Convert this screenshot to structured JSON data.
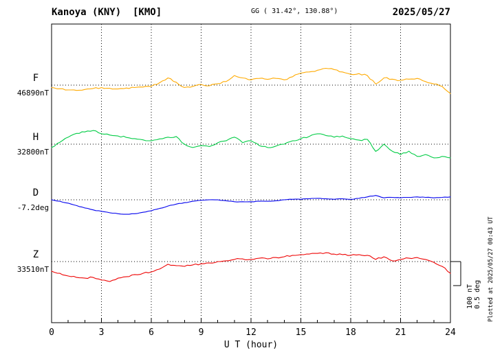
{
  "header": {
    "station_title": "Kanoya (KNY)  [KMO]",
    "gg_coords": "GG ( 31.42°, 130.88°)",
    "date": "2025/05/27"
  },
  "x_axis": {
    "label": "U T (hour)",
    "ticks": [
      0,
      3,
      6,
      9,
      12,
      15,
      18,
      21,
      24
    ],
    "min": 0,
    "max": 24
  },
  "scale_bar": {
    "line1": "100 nT",
    "line2": "0.5 deg"
  },
  "plotted_at": "Plotted at 2025/05/27 00:43 UT",
  "chart_data": {
    "type": "line",
    "title": "Kanoya (KNY) [KMO] geomagnetic field variations, 2025/05/27",
    "xlabel": "U T (hour)",
    "x_start": 0,
    "x_step": 0.5,
    "x_end": 24,
    "x_ticks": [
      0,
      3,
      6,
      9,
      12,
      15,
      18,
      21,
      24
    ],
    "grid": {
      "vertical_dotted_every_hours": 3,
      "horizontal_dotted_baselines": true
    },
    "scale": {
      "nT_per_div": 100,
      "deg_per_div": 0.5
    },
    "legend_position": "left",
    "sampling_note": "offsets are deviations from baseline_value in series unit, every 0.5 hour UT, estimated from plot",
    "series": [
      {
        "name": "F",
        "unit": "nT",
        "color": "#ffaa00",
        "baseline_value": 46890,
        "baseline_label": "46890nT",
        "offsets": [
          -10,
          -15,
          -20,
          -22,
          -18,
          -14,
          -10,
          -13,
          -16,
          -12,
          -10,
          -8,
          -5,
          10,
          30,
          12,
          -10,
          -5,
          3,
          -3,
          6,
          15,
          40,
          30,
          22,
          28,
          24,
          28,
          22,
          35,
          50,
          55,
          62,
          70,
          65,
          55,
          45,
          48,
          40,
          5,
          30,
          25,
          20,
          25,
          28,
          15,
          5,
          -5,
          -35
        ]
      },
      {
        "name": "H",
        "unit": "nT",
        "color": "#00cc44",
        "baseline_value": 32800,
        "baseline_label": "32800nT",
        "offsets": [
          -14,
          8,
          29,
          45,
          51,
          57,
          43,
          38,
          34,
          28,
          23,
          18,
          14,
          22,
          29,
          32,
          0,
          -14,
          -6,
          -10,
          6,
          14,
          29,
          6,
          14,
          -6,
          -14,
          -8,
          0,
          14,
          23,
          32,
          43,
          36,
          29,
          34,
          23,
          17,
          20,
          -30,
          0,
          -29,
          -43,
          -29,
          -51,
          -43,
          -57,
          -51,
          -57
        ]
      },
      {
        "name": "D",
        "unit": "deg",
        "color": "#0000ee",
        "baseline_value": -7.2,
        "baseline_label": "-7.2deg",
        "offsets": [
          0.0,
          -0.03,
          -0.07,
          -0.12,
          -0.17,
          -0.21,
          -0.24,
          -0.27,
          -0.29,
          -0.3,
          -0.29,
          -0.26,
          -0.23,
          -0.18,
          -0.13,
          -0.09,
          -0.06,
          -0.03,
          -0.01,
          0.0,
          0.0,
          -0.02,
          -0.04,
          -0.04,
          -0.04,
          -0.03,
          -0.03,
          -0.02,
          0.0,
          0.01,
          0.01,
          0.02,
          0.03,
          0.02,
          0.01,
          0.02,
          0.01,
          0.03,
          0.06,
          0.09,
          0.04,
          0.05,
          0.04,
          0.05,
          0.06,
          0.05,
          0.04,
          0.05,
          0.06
        ]
      },
      {
        "name": "Z",
        "unit": "nT",
        "color": "#ee0000",
        "baseline_value": 33510,
        "baseline_label": "33510nT",
        "offsets": [
          -40,
          -49,
          -60,
          -66,
          -69,
          -66,
          -77,
          -83,
          -69,
          -63,
          -54,
          -49,
          -43,
          -31,
          -11,
          -17,
          -20,
          -14,
          -9,
          -6,
          0,
          3,
          9,
          11,
          9,
          14,
          11,
          17,
          20,
          26,
          29,
          31,
          34,
          37,
          31,
          29,
          26,
          29,
          26,
          9,
          20,
          3,
          9,
          14,
          17,
          9,
          -3,
          -20,
          -49
        ]
      }
    ]
  }
}
